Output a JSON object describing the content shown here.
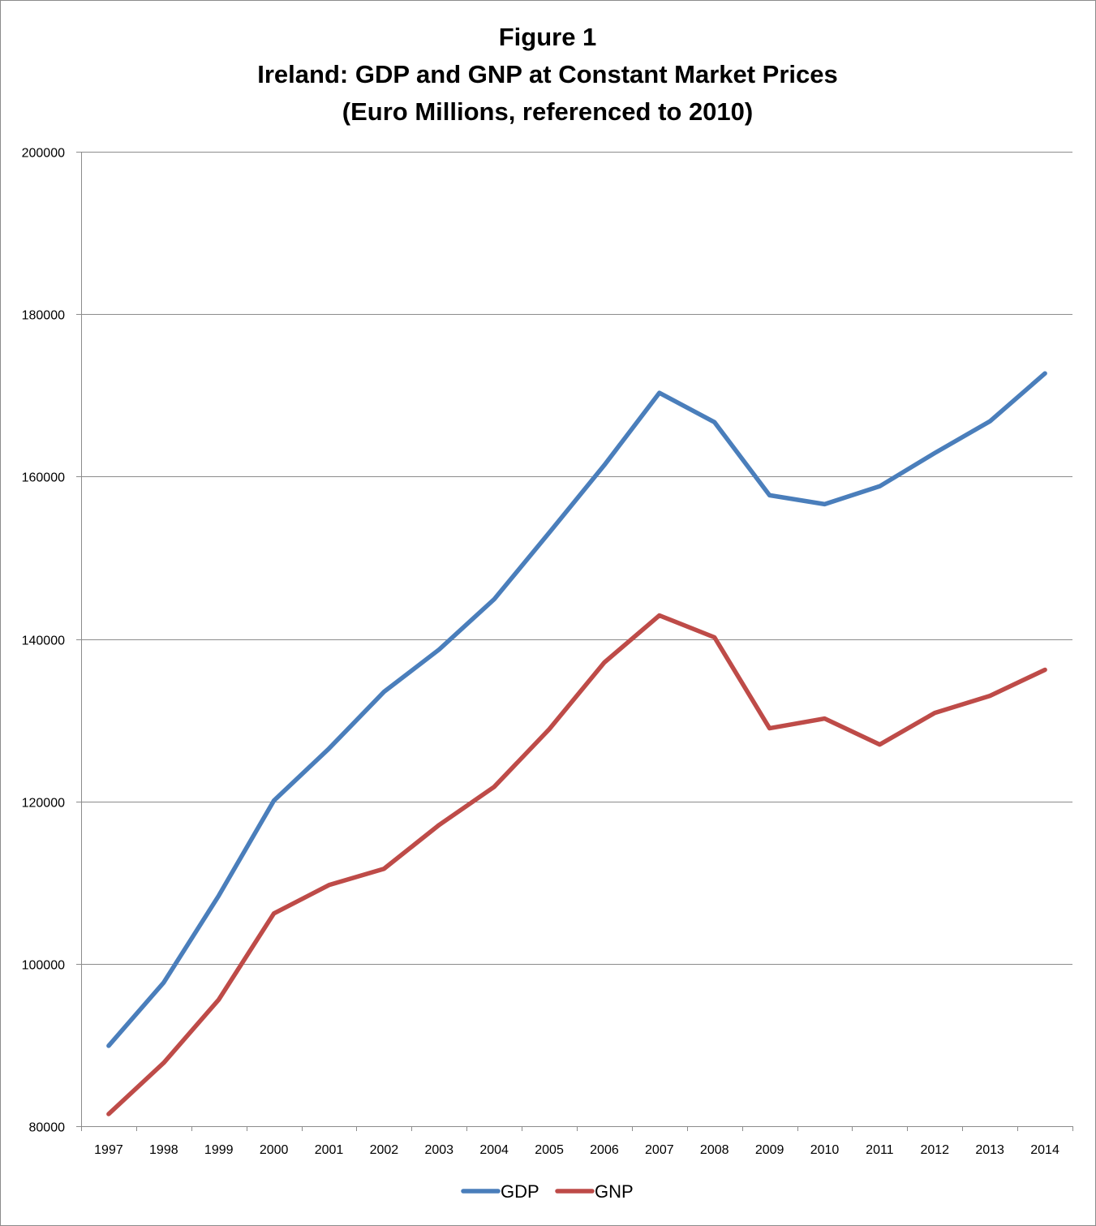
{
  "chart_data": {
    "type": "line",
    "title": [
      "Figure 1",
      "Ireland: GDP and GNP at Constant Market Prices",
      "(Euro Millions, referenced to 2010)"
    ],
    "xlabel": "",
    "ylabel": "",
    "x": [
      "1997",
      "1998",
      "1999",
      "2000",
      "2001",
      "2002",
      "2003",
      "2004",
      "2005",
      "2006",
      "2007",
      "2008",
      "2009",
      "2010",
      "2011",
      "2012",
      "2013",
      "2014"
    ],
    "ylim": [
      80000,
      200000
    ],
    "yticks": [
      80000,
      100000,
      120000,
      140000,
      160000,
      180000,
      200000
    ],
    "ytick_labels": [
      "80000",
      "100000",
      "120000",
      "140000",
      "160000",
      "180000",
      "200000"
    ],
    "grid": "horizontal",
    "legend": "bottom",
    "series": [
      {
        "name": "GDP",
        "color": "#4a7ebb",
        "values": [
          89900,
          97700,
          108400,
          120100,
          126500,
          133500,
          138700,
          144900,
          153100,
          161400,
          170300,
          166700,
          157700,
          156600,
          158800,
          162900,
          166800,
          172700
        ]
      },
      {
        "name": "GNP",
        "color": "#be4b48",
        "values": [
          81500,
          87800,
          95600,
          106200,
          109700,
          111700,
          117100,
          121800,
          128900,
          137100,
          142900,
          140200,
          129000,
          130200,
          127000,
          130900,
          133000,
          136200
        ]
      }
    ]
  }
}
